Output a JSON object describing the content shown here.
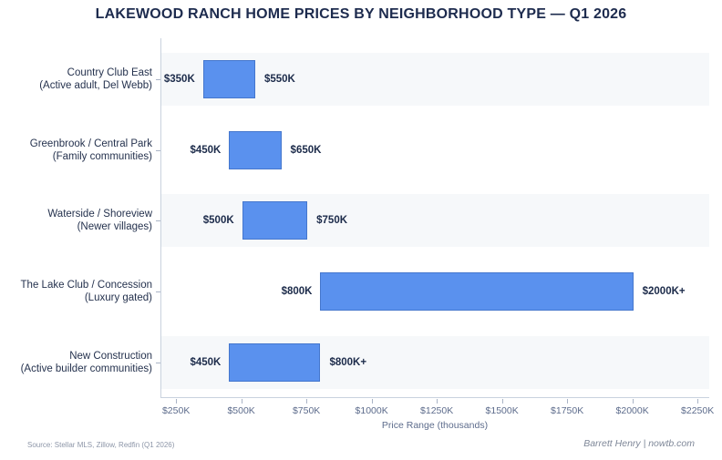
{
  "title": "LAKEWOOD RANCH HOME PRICES BY NEIGHBORHOOD TYPE — Q1 2026",
  "footer": {
    "source": "Source: Stellar MLS, Zillow, Redfin (Q1 2026)",
    "credit": "Barrett Henry | nowtb.com"
  },
  "colors": {
    "bar_fill": "#5a91ee",
    "bar_border": "#4577cd",
    "band": "#f6f8fa",
    "title_text": "#1d2b4e",
    "value_label_text": "#1c2b4a",
    "axis_text": "#5d6c8c",
    "spine": "#c9d2de"
  },
  "chart_data": {
    "type": "bar",
    "subtype": "horizontal-range",
    "title": "LAKEWOOD RANCH HOME PRICES BY NEIGHBORHOOD TYPE — Q1 2026",
    "xlabel": "Price Range (thousands)",
    "ylabel": "",
    "grid": false,
    "legend": false,
    "x_axis": {
      "min": 190,
      "max": 2295,
      "ticks": [
        {
          "value": 250,
          "label": "$250K"
        },
        {
          "value": 500,
          "label": "$500K"
        },
        {
          "value": 750,
          "label": "$750K"
        },
        {
          "value": 1000,
          "label": "$1000K"
        },
        {
          "value": 1250,
          "label": "$1250K"
        },
        {
          "value": 1500,
          "label": "$1500K"
        },
        {
          "value": 1750,
          "label": "$1750K"
        },
        {
          "value": 2000,
          "label": "$2000K"
        },
        {
          "value": 2250,
          "label": "$2250K"
        }
      ]
    },
    "series": [
      {
        "category": "Country Club East",
        "subcategory": "(Active adult, Del Webb)",
        "low": 350,
        "high": 550,
        "low_label": "$350K",
        "high_label": "$550K",
        "banded": true
      },
      {
        "category": "Greenbrook / Central Park",
        "subcategory": "(Family communities)",
        "low": 450,
        "high": 650,
        "low_label": "$450K",
        "high_label": "$650K",
        "banded": false
      },
      {
        "category": "Waterside / Shoreview",
        "subcategory": "(Newer villages)",
        "low": 500,
        "high": 750,
        "low_label": "$500K",
        "high_label": "$750K",
        "banded": true
      },
      {
        "category": "The Lake Club / Concession",
        "subcategory": "(Luxury gated)",
        "low": 800,
        "high": 2000,
        "low_label": "$800K",
        "high_label": "$2000K+",
        "banded": false
      },
      {
        "category": "New Construction",
        "subcategory": "(Active builder communities)",
        "low": 450,
        "high": 800,
        "low_label": "$450K",
        "high_label": "$800K+",
        "banded": true
      }
    ]
  }
}
